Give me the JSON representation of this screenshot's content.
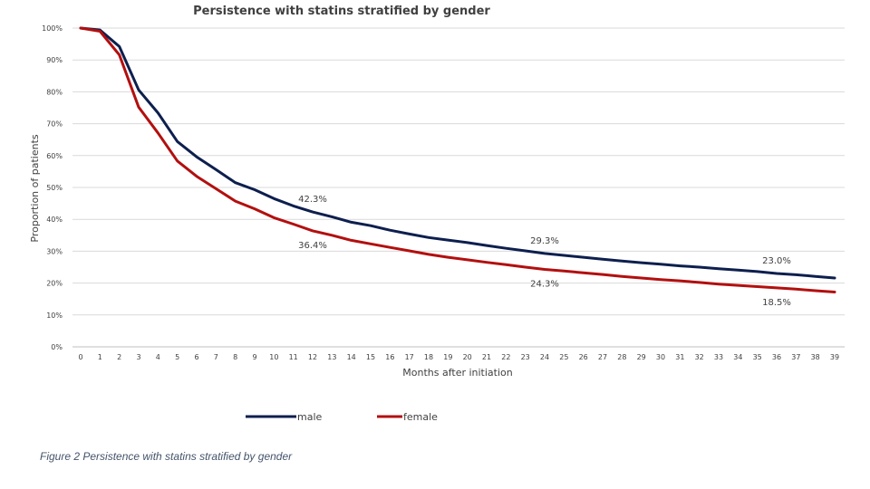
{
  "caption": "Figure 2 Persistence with statins stratified by gender",
  "chart_data": {
    "type": "line",
    "title": "Persistence with statins stratified by gender",
    "xlabel": "Months after initiation",
    "ylabel": "Proportion of patients",
    "x": [
      0,
      1,
      2,
      3,
      4,
      5,
      6,
      7,
      8,
      9,
      10,
      11,
      12,
      13,
      14,
      15,
      16,
      17,
      18,
      19,
      20,
      21,
      22,
      23,
      24,
      25,
      26,
      27,
      28,
      29,
      30,
      31,
      32,
      33,
      34,
      35,
      36,
      37,
      38,
      39
    ],
    "ylim": [
      0,
      100
    ],
    "y_ticks": [
      0,
      10,
      20,
      30,
      40,
      50,
      60,
      70,
      80,
      90,
      100
    ],
    "y_tick_labels": [
      "0%",
      "10%",
      "20%",
      "30%",
      "40%",
      "50%",
      "60%",
      "70%",
      "80%",
      "90%",
      "100%"
    ],
    "grid": true,
    "legend_position": "bottom",
    "series": [
      {
        "name": "male",
        "color": "#0d1f4e",
        "values": [
          100,
          99.4,
          94.2,
          80.6,
          73.4,
          64.4,
          59.6,
          55.6,
          51.5,
          49.3,
          46.5,
          44.2,
          42.3,
          40.8,
          39.1,
          38.0,
          36.6,
          35.4,
          34.3,
          33.5,
          32.7,
          31.8,
          30.9,
          30.1,
          29.3,
          28.7,
          28.1,
          27.5,
          26.9,
          26.4,
          25.9,
          25.4,
          25.0,
          24.5,
          24.1,
          23.6,
          23.0,
          22.6,
          22.1,
          21.6
        ],
        "annotations": [
          {
            "x": 12,
            "label": "42.3%"
          },
          {
            "x": 24,
            "label": "29.3%"
          },
          {
            "x": 36,
            "label": "23.0%"
          }
        ]
      },
      {
        "name": "female",
        "color": "#b30f0f",
        "values": [
          100,
          99.0,
          91.6,
          75.2,
          67.1,
          58.3,
          53.5,
          49.6,
          45.7,
          43.3,
          40.5,
          38.5,
          36.4,
          35.0,
          33.4,
          32.3,
          31.2,
          30.1,
          29.0,
          28.1,
          27.3,
          26.5,
          25.8,
          25.0,
          24.3,
          23.8,
          23.2,
          22.7,
          22.1,
          21.6,
          21.1,
          20.7,
          20.2,
          19.7,
          19.3,
          18.9,
          18.5,
          18.1,
          17.6,
          17.2
        ],
        "annotations": [
          {
            "x": 12,
            "label": "36.4%"
          },
          {
            "x": 24,
            "label": "24.3%"
          },
          {
            "x": 36,
            "label": "18.5%"
          }
        ]
      }
    ]
  }
}
